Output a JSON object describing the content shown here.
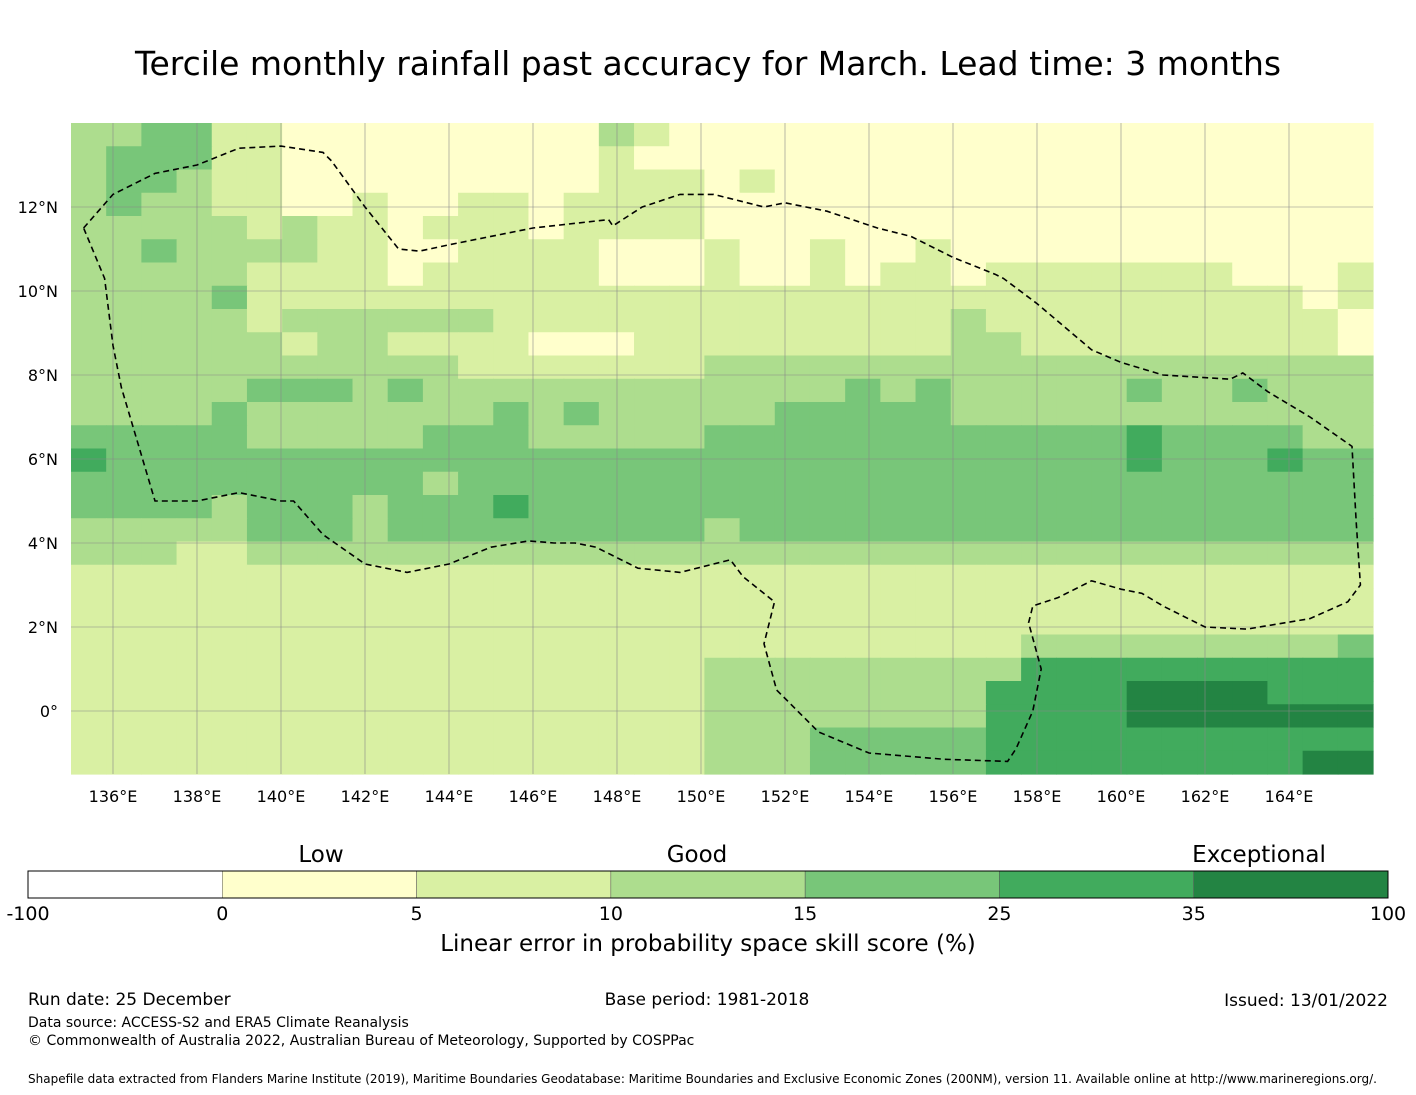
{
  "title": "Tercile monthly rainfall past accuracy for March. Lead time: 3 months",
  "map": {
    "lon_range": [
      135,
      166
    ],
    "lat_range": [
      -1.5,
      14
    ],
    "lon_ticks": [
      136,
      138,
      140,
      142,
      144,
      146,
      148,
      150,
      152,
      154,
      156,
      158,
      160,
      162,
      164
    ],
    "lon_tick_labels": [
      "136°E",
      "138°E",
      "140°E",
      "142°E",
      "144°E",
      "146°E",
      "148°E",
      "150°E",
      "152°E",
      "154°E",
      "156°E",
      "158°E",
      "160°E",
      "162°E",
      "164°E"
    ],
    "lat_ticks": [
      12,
      10,
      8,
      6,
      4,
      2,
      0
    ],
    "lat_tick_labels": [
      "12°N",
      "10°N",
      "8°N",
      "6°N",
      "4°N",
      "2°N",
      "0°"
    ],
    "eez_boundary_lonlat": [
      [
        135.3,
        11.5
      ],
      [
        136.0,
        12.3
      ],
      [
        137.0,
        12.8
      ],
      [
        138.0,
        13.0
      ],
      [
        139.0,
        13.4
      ],
      [
        140.0,
        13.45
      ],
      [
        141.0,
        13.3
      ],
      [
        141.2,
        13.1
      ],
      [
        142.0,
        12.0
      ],
      [
        142.8,
        11.0
      ],
      [
        143.3,
        10.95
      ],
      [
        144.0,
        11.1
      ],
      [
        146.0,
        11.5
      ],
      [
        147.8,
        11.7
      ],
      [
        147.9,
        11.55
      ],
      [
        148.6,
        12.0
      ],
      [
        149.5,
        12.3
      ],
      [
        150.3,
        12.3
      ],
      [
        151.5,
        12.0
      ],
      [
        152.0,
        12.1
      ],
      [
        153.0,
        11.9
      ],
      [
        154.2,
        11.5
      ],
      [
        155.0,
        11.3
      ],
      [
        156.0,
        10.8
      ],
      [
        157.0,
        10.4
      ],
      [
        157.2,
        10.3
      ],
      [
        158.0,
        9.7
      ],
      [
        159.3,
        8.6
      ],
      [
        160.0,
        8.3
      ],
      [
        161.0,
        8.0
      ],
      [
        162.6,
        7.9
      ],
      [
        162.9,
        8.05
      ],
      [
        163.5,
        7.6
      ],
      [
        164.5,
        7.0
      ],
      [
        165.5,
        6.3
      ],
      [
        165.6,
        4.5
      ],
      [
        165.7,
        3.0
      ],
      [
        165.4,
        2.6
      ],
      [
        164.5,
        2.2
      ],
      [
        163.0,
        1.95
      ],
      [
        162.0,
        2.0
      ],
      [
        161.0,
        2.5
      ],
      [
        160.5,
        2.8
      ],
      [
        160.0,
        2.9
      ],
      [
        159.3,
        3.1
      ],
      [
        158.5,
        2.7
      ],
      [
        157.9,
        2.5
      ],
      [
        157.8,
        2.1
      ],
      [
        158.1,
        1.0
      ],
      [
        157.9,
        0.0
      ],
      [
        157.5,
        -0.9
      ],
      [
        157.3,
        -1.2
      ],
      [
        155.8,
        -1.15
      ],
      [
        154.0,
        -1.0
      ],
      [
        152.8,
        -0.5
      ],
      [
        151.8,
        0.5
      ],
      [
        151.5,
        1.6
      ],
      [
        151.75,
        2.6
      ],
      [
        151.0,
        3.2
      ],
      [
        150.7,
        3.6
      ],
      [
        149.5,
        3.3
      ],
      [
        148.5,
        3.4
      ],
      [
        147.5,
        3.9
      ],
      [
        147.0,
        4.0
      ],
      [
        146.5,
        4.0
      ],
      [
        145.9,
        4.05
      ],
      [
        145.0,
        3.9
      ],
      [
        144.0,
        3.5
      ],
      [
        143.0,
        3.3
      ],
      [
        142.0,
        3.5
      ],
      [
        141.0,
        4.2
      ],
      [
        140.3,
        5.0
      ],
      [
        140.0,
        5.0
      ],
      [
        139.0,
        5.2
      ],
      [
        138.0,
        5.0
      ],
      [
        137.0,
        5.0
      ],
      [
        136.2,
        7.7
      ],
      [
        136.0,
        8.7
      ],
      [
        135.8,
        10.3
      ],
      [
        135.3,
        11.5
      ]
    ],
    "grid_cols": 37,
    "grid_rows": 28,
    "grid_codes": [
      "3344221111111113211111111111111111111",
      "3444221111111112111111111111111111111",
      "3443221111111112221211111111111111111",
      "3433221121122122221111111111111111111",
      "3333323221222122221111111111111111111",
      "3343333221122221112112112111111111111",
      "3333322221222221112112122122222221112",
      "3333422222222222222222222222222222212",
      "3333323333332222222222222322222222221",
      "3333332332222111222222222332222222221",
      "3333333333322222223333333333333333333",
      "3333344434333333333333434333334334333",
      "3333433333334343333344444333333333333",
      "4444433333444333334444444444445444433",
      "5444444444444444444444444444445444544",
      "4444444444344444444444444444444444444",
      "4444344434445444444444444444444444444",
      "3333344434444444443444444444444444444",
      "3332233333333333333333333333333333333",
      "2222222222222222222222222222222222222",
      "2222222222222222222222222222222222222",
      "2222222222222222222222222222222222222",
      "2222222222222222222222222223333333334",
      "2222222222222222223333333335555555555",
      "2222222222222222223333333355556666555",
      "2222222222222222223333333355556666666",
      "2222222222222222223334444455555555555",
      "2222222222222222223334444455555555566"
    ]
  },
  "legend": {
    "category_labels": [
      "Low",
      "Good",
      "Exceptional"
    ],
    "tick_labels": [
      "-100",
      "0",
      "5",
      "10",
      "15",
      "25",
      "35",
      "100"
    ],
    "colors": [
      "#ffffff",
      "#ffffcc",
      "#d9f0a3",
      "#addd8e",
      "#78c679",
      "#41ab5d",
      "#238443"
    ],
    "title": "Linear error in probability space skill score (%)"
  },
  "footer": {
    "run_date": "Run date: 25 December",
    "base_period": "Base period: 1981-2018",
    "issued": "Issued: 13/01/2022",
    "data_source": "Data source: ACCESS-S2 and ERA5 Climate Reanalysis",
    "copyright": "© Commonwealth of Australia 2022, Australian Bureau of Meteorology, Supported by COSPPac",
    "shapefile_credit": "Shapefile data extracted from Flanders Marine Institute (2019), Maritime Boundaries Geodatabase: Maritime Boundaries and Exclusive Economic Zones (200NM), version 11. Available online at http://www.marineregions.org/."
  }
}
